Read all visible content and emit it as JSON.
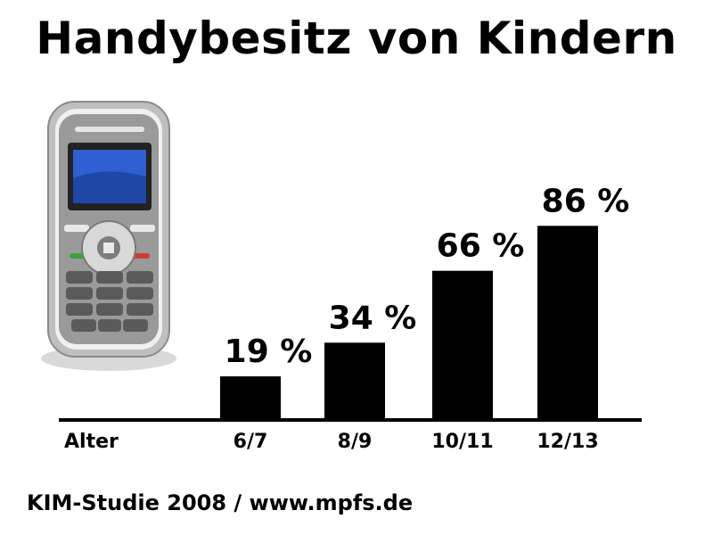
{
  "title": "Handybesitz von Kindern",
  "source": "KIM-Studie 2008 / www.mpfs.de",
  "icon": "mobile-phone-icon",
  "chart_data": {
    "type": "bar",
    "title": "Handybesitz von Kindern",
    "xlabel": "Alter",
    "ylabel": "",
    "categories": [
      "6/7",
      "8/9",
      "10/11",
      "12/13"
    ],
    "values": [
      19,
      34,
      66,
      86
    ],
    "value_labels": [
      "19 %",
      "34 %",
      "66 %",
      "86 %"
    ],
    "ylim": [
      0,
      100
    ],
    "grid": false,
    "colors": {
      "bars": "#000000",
      "axis": "#000000"
    }
  }
}
